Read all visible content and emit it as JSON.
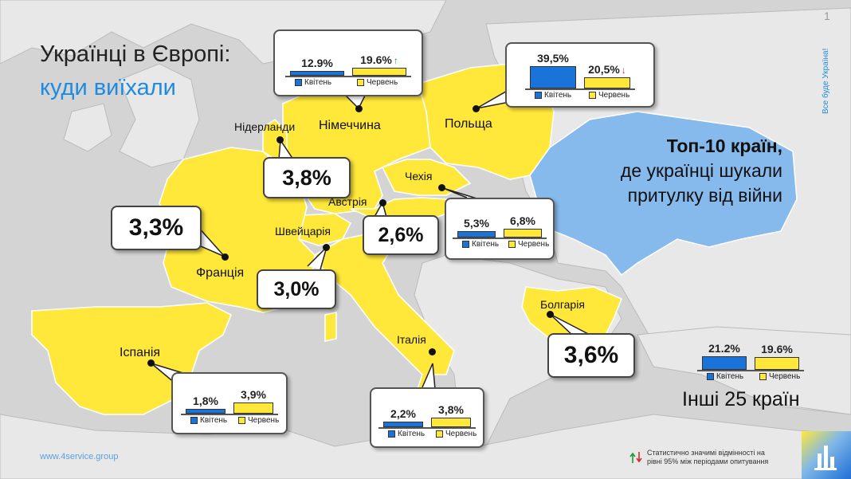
{
  "title": {
    "line1": "Українці в Європі:",
    "line2": "куди виїхали"
  },
  "page_number": "1",
  "vertical_text": "Все буде Україна!",
  "top10": {
    "line1": "Топ-10 країн,",
    "line2": "де українці шукали",
    "line3": "притулку від війни"
  },
  "countries": {
    "germany": "Німеччина",
    "poland": "Польща",
    "netherlands": "Нідерланди",
    "czechia": "Чехія",
    "austria": "Австрія",
    "switzerland": "Швейцарія",
    "france": "Франція",
    "spain": "Іспанія",
    "italy": "Італія",
    "bulgaria": "Болгарія"
  },
  "single_values": {
    "netherlands": "3,8%",
    "france": "3,3%",
    "austria": "2,6%",
    "switzerland": "3,0%",
    "bulgaria": "3,6%"
  },
  "legend": {
    "april": "Квітень",
    "june": "Червень"
  },
  "paired": {
    "germany": {
      "april": "12.9%",
      "june": "19.6%",
      "april_value": 12.9,
      "june_value": 19.6,
      "change": "up"
    },
    "poland": {
      "april": "39,5%",
      "june": "20,5%",
      "april_value": 39.5,
      "june_value": 20.5,
      "change": "down"
    },
    "czechia": {
      "april": "5,3%",
      "june": "6,8%",
      "april_value": 5.3,
      "june_value": 6.8
    },
    "spain": {
      "april": "1,8%",
      "june": "3,9%",
      "april_value": 1.8,
      "june_value": 3.9
    },
    "italy": {
      "april": "2,2%",
      "june": "3,8%",
      "april_value": 2.2,
      "june_value": 3.8
    },
    "others": {
      "april": "21.2%",
      "june": "19.6%",
      "april_value": 21.2,
      "june_value": 19.6
    }
  },
  "others_label": "Інші 25 країн",
  "footer_url": "www.4service.group",
  "significance_note": {
    "line1": "Статистично значимі відмінності на",
    "line2": "рівні  95% між періодами опитування"
  },
  "colors": {
    "highlight_country": "#ffe83a",
    "ukraine": "#86b9ec",
    "other_land": "#e8e8e8",
    "sea": "#d4d4d4",
    "april_bar": "#1a73d9",
    "june_bar": "#ffe83a",
    "accent": "#1f8be0"
  }
}
